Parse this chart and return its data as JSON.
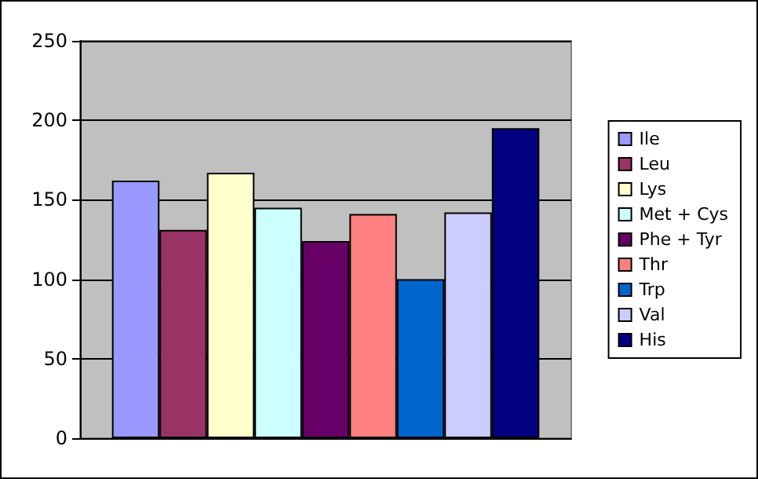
{
  "chart_data": {
    "type": "bar",
    "categories": [
      null
    ],
    "series": [
      {
        "name": "Ile",
        "color": "#9999ff",
        "values": [
          162
        ]
      },
      {
        "name": "Leu",
        "color": "#993366",
        "values": [
          131
        ]
      },
      {
        "name": "Lys",
        "color": "#ffffcc",
        "values": [
          167
        ]
      },
      {
        "name": "Met + Cys",
        "color": "#ccffff",
        "values": [
          145
        ]
      },
      {
        "name": "Phe + Tyr",
        "color": "#660066",
        "values": [
          124
        ]
      },
      {
        "name": "Thr",
        "color": "#ff8080",
        "values": [
          141
        ]
      },
      {
        "name": "Trp",
        "color": "#0066cc",
        "values": [
          100
        ]
      },
      {
        "name": "Val",
        "color": "#ccccff",
        "values": [
          142
        ]
      },
      {
        "name": "His",
        "color": "#000080",
        "values": [
          195
        ]
      }
    ],
    "ylim": [
      0,
      250
    ],
    "yticks": [
      0,
      50,
      100,
      150,
      200,
      250
    ],
    "grid": "y",
    "legend": "right",
    "tick_labels": "y"
  }
}
